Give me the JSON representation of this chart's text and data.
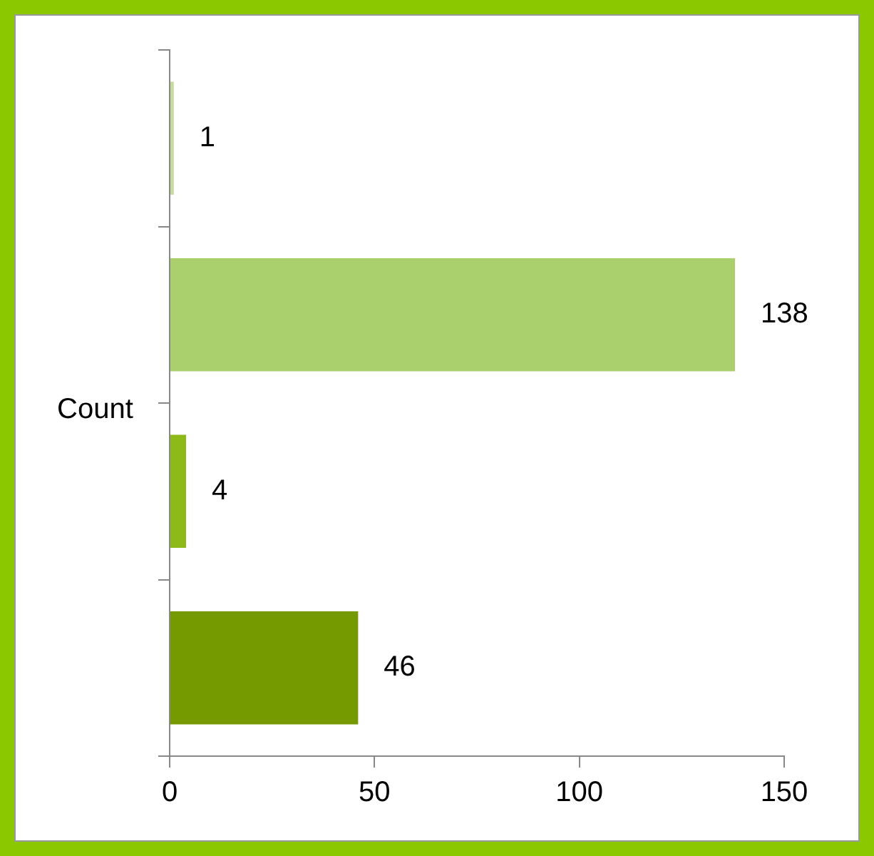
{
  "chart_data": {
    "type": "bar",
    "orientation": "horizontal",
    "ylabel": "Count",
    "categories": [
      null,
      null,
      null,
      null
    ],
    "values": [
      1,
      138,
      4,
      46
    ],
    "colors": [
      "#c3dc9b",
      "#a9d06c",
      "#8dba18",
      "#759a00"
    ],
    "xlim": [
      0,
      150
    ],
    "xticks": [
      0,
      50,
      100,
      150
    ],
    "grid": false,
    "legend": false,
    "data_labels": true
  }
}
